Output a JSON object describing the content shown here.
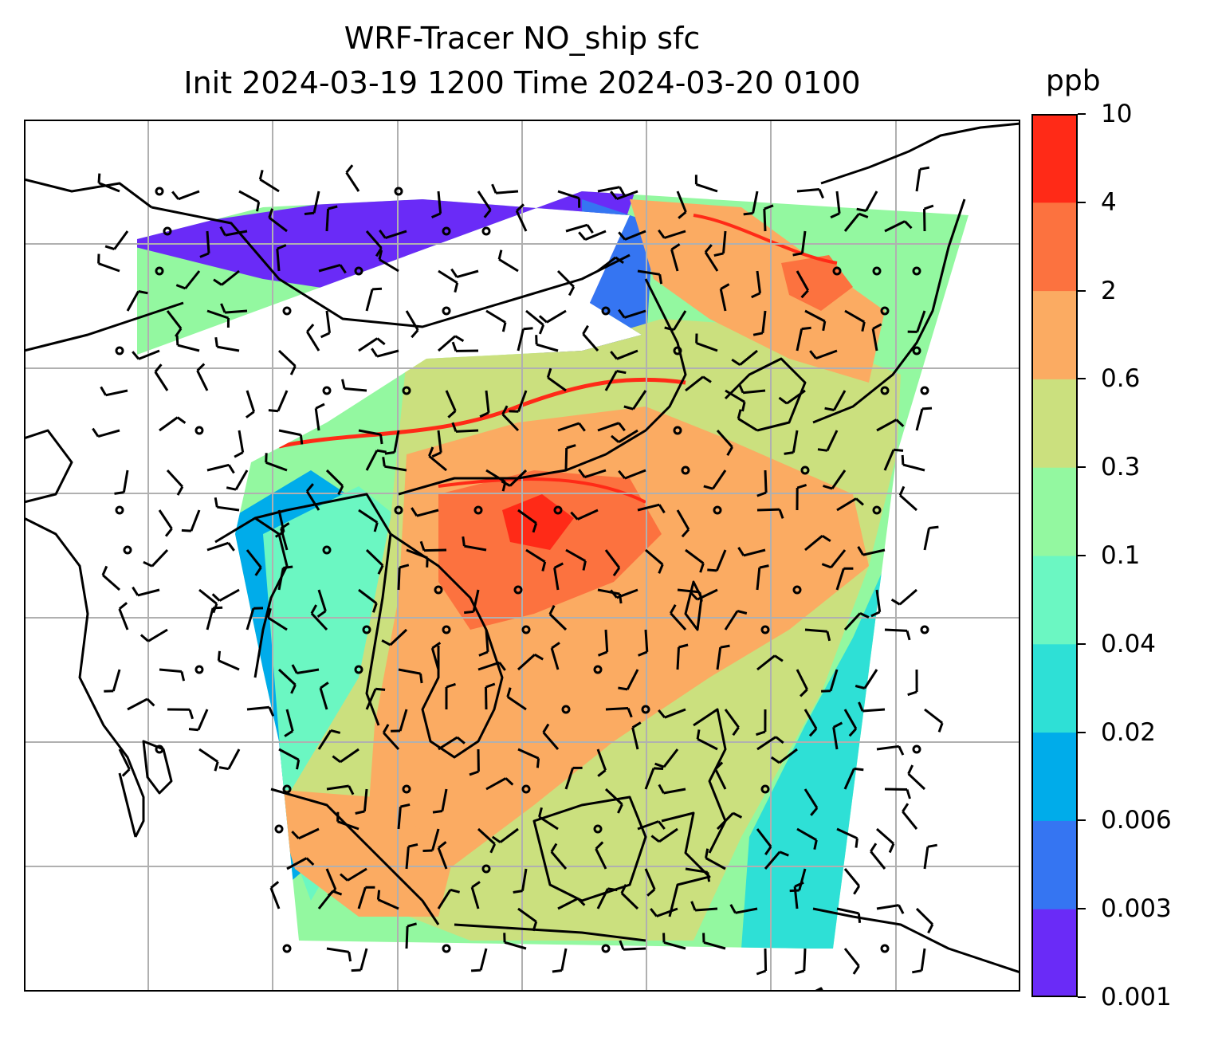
{
  "title": {
    "line1": "WRF-Tracer NO_ship sfc",
    "line2": "Init 2024-03-19 1200 Time 2024-03-20 0100"
  },
  "colorbar": {
    "unit": "ppb",
    "levels": [
      "0.001",
      "0.003",
      "0.006",
      "0.02",
      "0.04",
      "0.1",
      "0.3",
      "0.6",
      "2",
      "4",
      "10"
    ],
    "colors": [
      "#6a2bf7",
      "#3575f2",
      "#00acea",
      "#2ee0d6",
      "#6bf7c2",
      "#93f8a0",
      "#cbe07e",
      "#fbab62",
      "#fc723f",
      "#ff2a17"
    ]
  },
  "map": {
    "field": "NO_ship surface concentration",
    "gridlines": true,
    "gridline_color": "#b0b0b0",
    "coastline_color": "#000000",
    "overlay": "wind barbs",
    "no_data_color": "#ffffff"
  }
}
